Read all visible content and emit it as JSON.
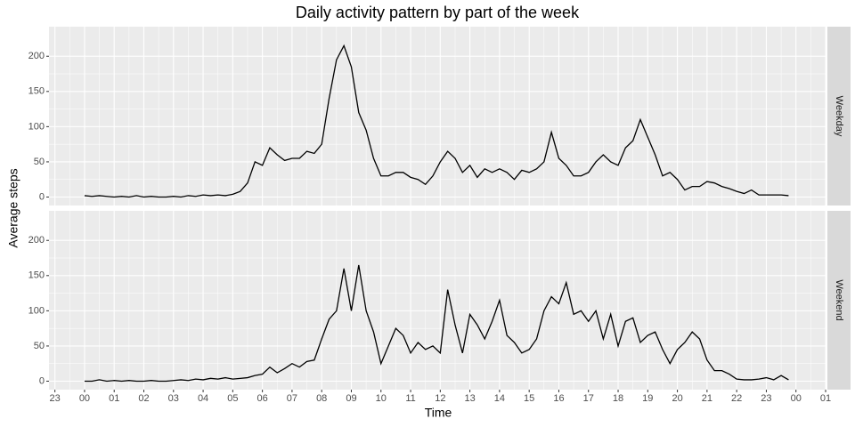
{
  "chart_data": {
    "type": "line",
    "title": "Daily activity pattern by part of the week",
    "xlabel": "Time",
    "ylabel": "Average steps",
    "color": "#000000",
    "grid": true,
    "xlim": [
      -1.2,
      25
    ],
    "ylim": [
      -12,
      242
    ],
    "xticks": [
      {
        "value": -1,
        "label": "23"
      },
      {
        "value": 0,
        "label": "00"
      },
      {
        "value": 1,
        "label": "01"
      },
      {
        "value": 2,
        "label": "02"
      },
      {
        "value": 3,
        "label": "03"
      },
      {
        "value": 4,
        "label": "04"
      },
      {
        "value": 5,
        "label": "05"
      },
      {
        "value": 6,
        "label": "06"
      },
      {
        "value": 7,
        "label": "07"
      },
      {
        "value": 8,
        "label": "08"
      },
      {
        "value": 9,
        "label": "09"
      },
      10,
      11,
      12,
      13,
      14,
      15,
      16,
      17,
      18,
      19,
      20,
      21,
      22,
      23,
      {
        "value": 24,
        "label": "00"
      },
      {
        "value": 25,
        "label": "01"
      }
    ],
    "yticks": [
      0,
      50,
      100,
      150,
      200
    ],
    "x": [
      0,
      0.25,
      0.5,
      0.75,
      1,
      1.25,
      1.5,
      1.75,
      2,
      2.25,
      2.5,
      2.75,
      3,
      3.25,
      3.5,
      3.75,
      4,
      4.25,
      4.5,
      4.75,
      5,
      5.25,
      5.5,
      5.75,
      6,
      6.25,
      6.5,
      6.75,
      7,
      7.25,
      7.5,
      7.75,
      8,
      8.25,
      8.5,
      8.75,
      9,
      9.25,
      9.5,
      9.75,
      10,
      10.25,
      10.5,
      10.75,
      11,
      11.25,
      11.5,
      11.75,
      12,
      12.25,
      12.5,
      12.75,
      13,
      13.25,
      13.5,
      13.75,
      14,
      14.25,
      14.5,
      14.75,
      15,
      15.25,
      15.5,
      15.75,
      16,
      16.25,
      16.5,
      16.75,
      17,
      17.25,
      17.5,
      17.75,
      18,
      18.25,
      18.5,
      18.75,
      19,
      19.25,
      19.5,
      19.75,
      20,
      20.25,
      20.5,
      20.75,
      21,
      21.25,
      21.5,
      21.75,
      22,
      22.25,
      22.5,
      22.75,
      23,
      23.25,
      23.5,
      23.75
    ],
    "facets": [
      {
        "label": "Weekday",
        "values": [
          2,
          1,
          2,
          1,
          0,
          1,
          0,
          2,
          0,
          1,
          0,
          0,
          1,
          0,
          2,
          1,
          3,
          2,
          3,
          2,
          4,
          8,
          20,
          50,
          45,
          70,
          60,
          52,
          55,
          55,
          65,
          62,
          75,
          140,
          195,
          215,
          185,
          120,
          95,
          55,
          30,
          30,
          35,
          35,
          28,
          25,
          18,
          30,
          50,
          65,
          55,
          35,
          45,
          28,
          40,
          35,
          40,
          35,
          25,
          38,
          35,
          40,
          50,
          92,
          55,
          45,
          30,
          30,
          35,
          50,
          60,
          50,
          45,
          70,
          80,
          110,
          85,
          60,
          30,
          35,
          25,
          10,
          15,
          15,
          22,
          20,
          15,
          12,
          8,
          5,
          10,
          3,
          3,
          3,
          3,
          2
        ]
      },
      {
        "label": "Weekend",
        "values": [
          0,
          0,
          2,
          0,
          1,
          0,
          1,
          0,
          0,
          1,
          0,
          0,
          1,
          2,
          1,
          3,
          2,
          4,
          3,
          5,
          3,
          4,
          5,
          8,
          10,
          20,
          12,
          18,
          25,
          20,
          28,
          30,
          60,
          88,
          100,
          160,
          100,
          165,
          100,
          70,
          25,
          50,
          75,
          65,
          40,
          55,
          45,
          50,
          40,
          130,
          80,
          40,
          95,
          80,
          60,
          85,
          115,
          65,
          55,
          40,
          45,
          60,
          100,
          120,
          110,
          140,
          95,
          100,
          85,
          100,
          60,
          95,
          50,
          85,
          90,
          55,
          65,
          70,
          45,
          25,
          45,
          55,
          70,
          60,
          30,
          15,
          15,
          10,
          3,
          2,
          2,
          3,
          5,
          2,
          8,
          2
        ]
      }
    ]
  }
}
